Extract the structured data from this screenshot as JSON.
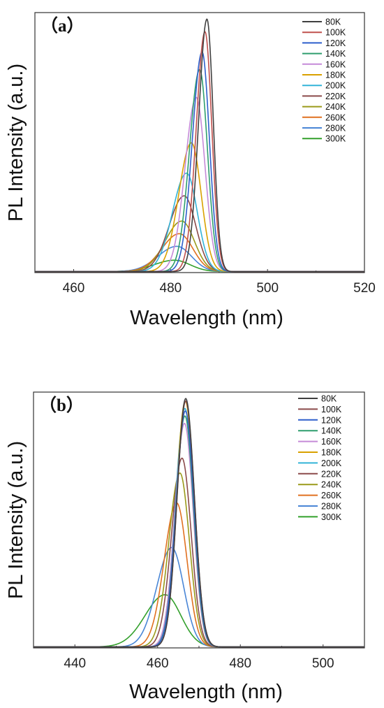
{
  "chart_data": [
    {
      "type": "line",
      "panel_label": "（a）",
      "xlabel": "Wavelength (nm)",
      "ylabel": "PL Intensity (a.u.)",
      "xlim": [
        452,
        520
      ],
      "ylim": [
        0,
        1.03
      ],
      "xticks": [
        460,
        480,
        500,
        520
      ],
      "legend_position": "top-right",
      "series": [
        {
          "name": "80K",
          "color": "#404040",
          "peak": 487.5,
          "amplitude": 1.0,
          "sigma_left": 1.7,
          "sigma_right": 1.3
        },
        {
          "name": "100K",
          "color": "#c0504d",
          "peak": 487.1,
          "amplitude": 0.95,
          "sigma_left": 1.8,
          "sigma_right": 1.4
        },
        {
          "name": "120K",
          "color": "#2e5fcc",
          "peak": 486.5,
          "amplitude": 0.87,
          "sigma_left": 2.0,
          "sigma_right": 1.5
        },
        {
          "name": "140K",
          "color": "#2f9e6e",
          "peak": 486.0,
          "amplitude": 0.8,
          "sigma_left": 2.1,
          "sigma_right": 1.6
        },
        {
          "name": "160K",
          "color": "#c58ad8",
          "peak": 485.3,
          "amplitude": 0.69,
          "sigma_left": 2.3,
          "sigma_right": 1.8
        },
        {
          "name": "180K",
          "color": "#d9a100",
          "peak": 484.3,
          "amplitude": 0.51,
          "sigma_left": 2.6,
          "sigma_right": 2.0
        },
        {
          "name": "200K",
          "color": "#33b4d8",
          "peak": 483.3,
          "amplitude": 0.39,
          "sigma_left": 2.9,
          "sigma_right": 2.2
        },
        {
          "name": "220K",
          "color": "#8b4a4a",
          "peak": 482.8,
          "amplitude": 0.3,
          "sigma_left": 3.1,
          "sigma_right": 2.4
        },
        {
          "name": "240K",
          "color": "#9a9a1a",
          "peak": 482.3,
          "amplitude": 0.2,
          "sigma_left": 3.4,
          "sigma_right": 2.6
        },
        {
          "name": "260K",
          "color": "#e07020",
          "peak": 481.8,
          "amplitude": 0.15,
          "sigma_left": 3.6,
          "sigma_right": 2.8
        },
        {
          "name": "280K",
          "color": "#4a86d6",
          "peak": 481.3,
          "amplitude": 0.1,
          "sigma_left": 3.9,
          "sigma_right": 3.0
        },
        {
          "name": "300K",
          "color": "#33a02c",
          "peak": 480.8,
          "amplitude": 0.045,
          "sigma_left": 4.2,
          "sigma_right": 3.2
        }
      ]
    },
    {
      "type": "line",
      "panel_label": "（b）",
      "xlabel": "Wavelength (nm)",
      "ylabel": "PL Intensity (a.u.)",
      "xlim": [
        430,
        510
      ],
      "ylim": [
        0,
        1.03
      ],
      "xticks": [
        440,
        460,
        480,
        500
      ],
      "legend_position": "top-right",
      "series": [
        {
          "name": "80K",
          "color": "#404040",
          "peak": 466.8,
          "amplitude": 1.0,
          "sigma_left": 2.1,
          "sigma_right": 2.1
        },
        {
          "name": "100K",
          "color": "#8b4a4a",
          "peak": 466.8,
          "amplitude": 0.99,
          "sigma_left": 2.1,
          "sigma_right": 2.1
        },
        {
          "name": "120K",
          "color": "#2e5fcc",
          "peak": 466.7,
          "amplitude": 0.95,
          "sigma_left": 2.2,
          "sigma_right": 2.1
        },
        {
          "name": "140K",
          "color": "#2f9e6e",
          "peak": 466.6,
          "amplitude": 0.93,
          "sigma_left": 2.2,
          "sigma_right": 2.1
        },
        {
          "name": "160K",
          "color": "#c58ad8",
          "peak": 466.5,
          "amplitude": 0.9,
          "sigma_left": 2.3,
          "sigma_right": 2.1
        },
        {
          "name": "180K",
          "color": "#d9a100",
          "peak": 466.7,
          "amplitude": 0.99,
          "sigma_left": 2.2,
          "sigma_right": 2.1
        },
        {
          "name": "200K",
          "color": "#33b4d8",
          "peak": 466.6,
          "amplitude": 0.96,
          "sigma_left": 2.3,
          "sigma_right": 2.1
        },
        {
          "name": "220K",
          "color": "#8b4a4a",
          "peak": 465.9,
          "amplitude": 0.76,
          "sigma_left": 2.5,
          "sigma_right": 2.2
        },
        {
          "name": "240K",
          "color": "#9a9a1a",
          "peak": 465.4,
          "amplitude": 0.7,
          "sigma_left": 2.7,
          "sigma_right": 2.3
        },
        {
          "name": "260K",
          "color": "#e07020",
          "peak": 464.6,
          "amplitude": 0.58,
          "sigma_left": 3.0,
          "sigma_right": 2.5
        },
        {
          "name": "280K",
          "color": "#4a86d6",
          "peak": 463.4,
          "amplitude": 0.4,
          "sigma_left": 3.6,
          "sigma_right": 2.9
        },
        {
          "name": "300K",
          "color": "#33a02c",
          "peak": 461.8,
          "amplitude": 0.21,
          "sigma_left": 4.8,
          "sigma_right": 3.8
        }
      ]
    }
  ]
}
